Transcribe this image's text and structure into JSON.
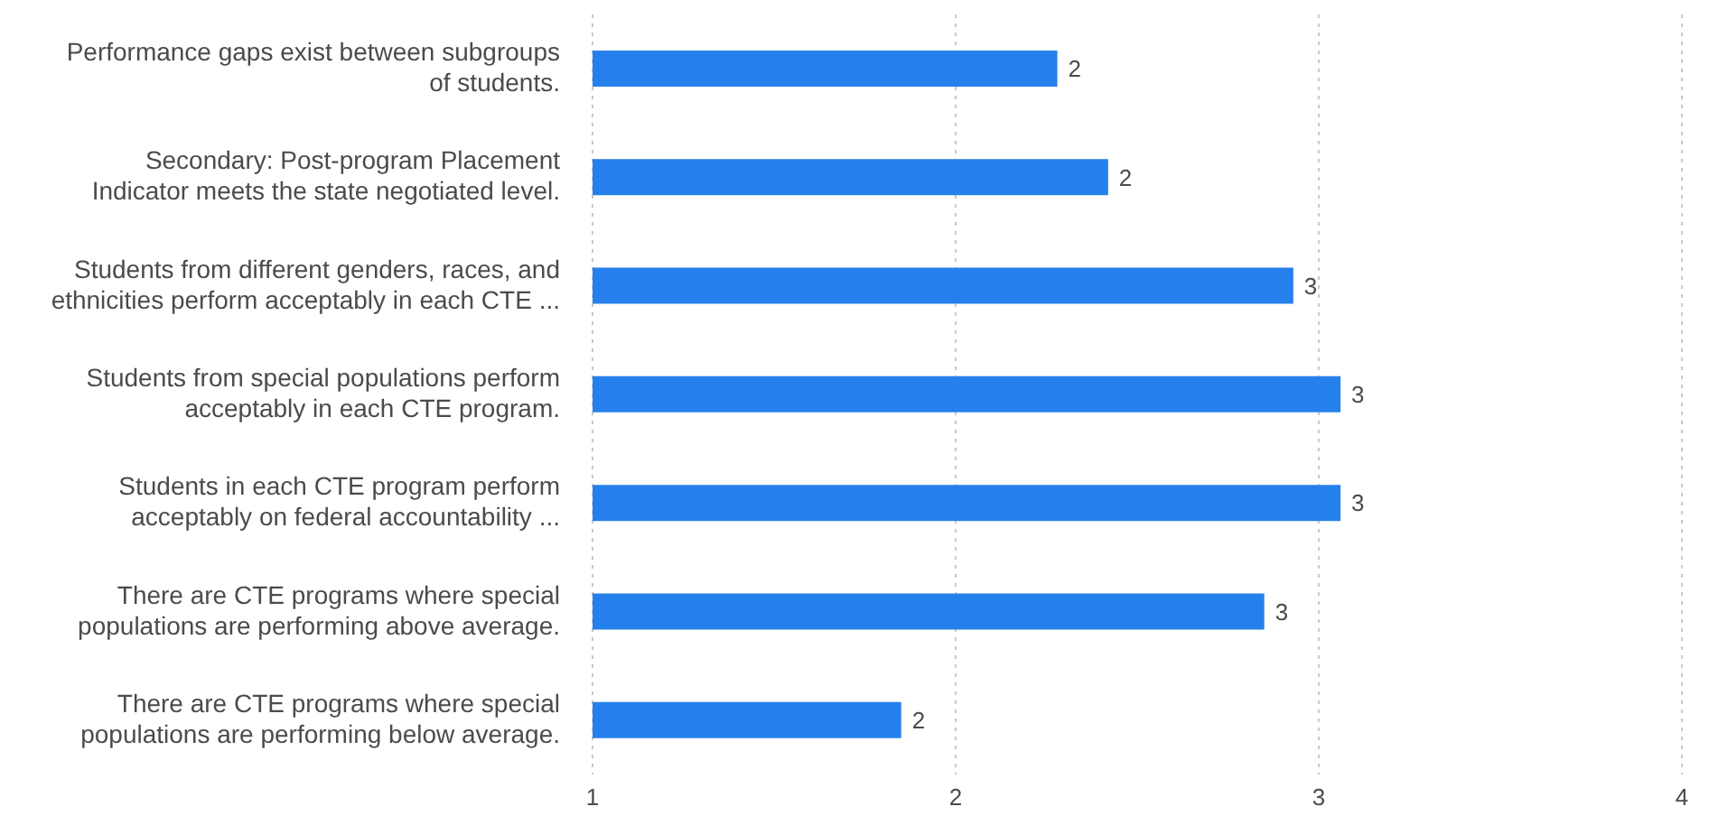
{
  "chart_data": {
    "type": "bar",
    "orientation": "horizontal",
    "categories": [
      "Performance gaps exist between subgroups\nof students.",
      "Secondary: Post-program Placement\nIndicator meets the state negotiated level.",
      "Students from different genders, races, and\nethnicities perform acceptably in each CTE ...",
      "Students from special populations perform\nacceptably in each CTE program.",
      "Students in each CTE program perform\nacceptably on federal accountability ...",
      "There are CTE programs where special\npopulations are performing above average.",
      "There are CTE programs where special\npopulations are performing below average."
    ],
    "values": [
      2.28,
      2.42,
      2.93,
      3.06,
      3.06,
      2.85,
      1.85
    ],
    "value_labels": [
      "2",
      "2",
      "3",
      "3",
      "3",
      "3",
      "2"
    ],
    "color": "#2680eb",
    "xlim": [
      1,
      4
    ],
    "xticks": [
      1,
      2,
      3,
      4
    ],
    "grid": "x"
  }
}
